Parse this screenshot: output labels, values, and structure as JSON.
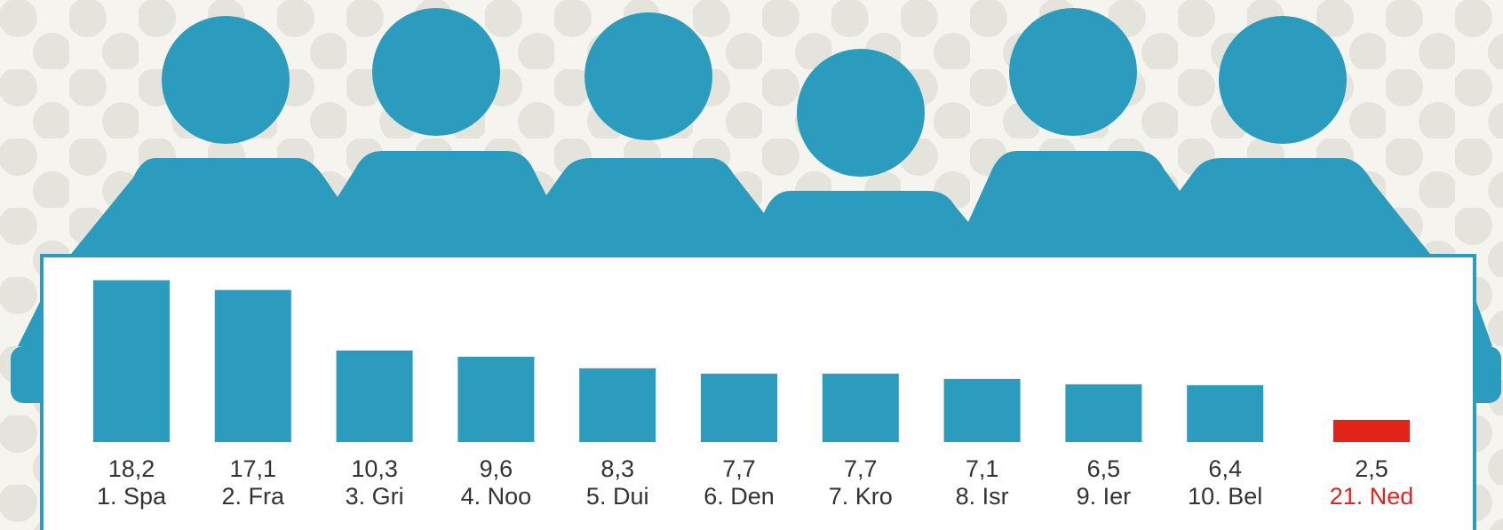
{
  "chart_data": {
    "type": "bar",
    "categories": [
      "1. Spa",
      "2. Fra",
      "3. Gri",
      "4. Noo",
      "5. Dui",
      "6. Den",
      "7. Kro",
      "8. Isr",
      "9. Ier",
      "10. Bel",
      "21. Ned"
    ],
    "values": [
      18.2,
      17.1,
      10.3,
      9.6,
      8.3,
      7.7,
      7.7,
      7.1,
      6.5,
      6.4,
      2.5
    ],
    "value_labels": [
      "18,2",
      "17,1",
      "10,3",
      "9,6",
      "8,3",
      "7,7",
      "7,7",
      "7,1",
      "6,5",
      "6,4",
      "2,5"
    ],
    "colors": [
      "#2b9bbe",
      "#2b9bbe",
      "#2b9bbe",
      "#2b9bbe",
      "#2b9bbe",
      "#2b9bbe",
      "#2b9bbe",
      "#2b9bbe",
      "#2b9bbe",
      "#2b9bbe",
      "#e2231a"
    ],
    "label_colors": [
      "#333333",
      "#333333",
      "#333333",
      "#333333",
      "#333333",
      "#333333",
      "#333333",
      "#333333",
      "#333333",
      "#333333",
      "#e2231a"
    ]
  }
}
